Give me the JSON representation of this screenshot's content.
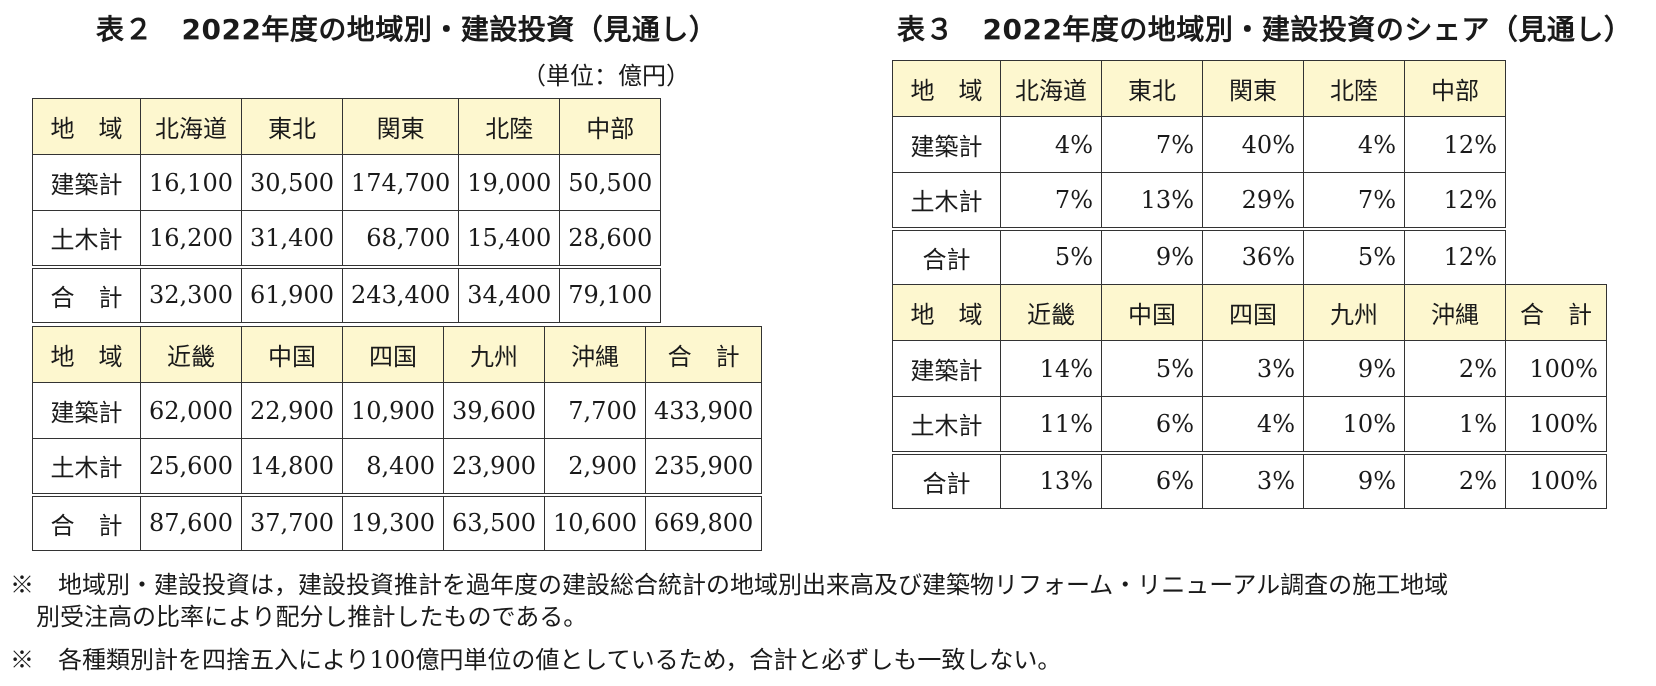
{
  "table2": {
    "title": "表２　2022年度の地域別・建設投資（見通し）",
    "unit": "（単位：億円）",
    "top": {
      "header": [
        "地　域",
        "北海道",
        "東北",
        "関東",
        "北陸",
        "中部"
      ],
      "rows": [
        [
          "建築計",
          "16,100",
          "30,500",
          "174,700",
          "19,000",
          "50,500"
        ],
        [
          "土木計",
          "16,200",
          "31,400",
          "68,700",
          "15,400",
          "28,600"
        ],
        [
          "合　計",
          "32,300",
          "61,900",
          "243,400",
          "34,400",
          "79,100"
        ]
      ]
    },
    "bottom": {
      "header": [
        "地　域",
        "近畿",
        "中国",
        "四国",
        "九州",
        "沖縄",
        "合　計"
      ],
      "rows": [
        [
          "建築計",
          "62,000",
          "22,900",
          "10,900",
          "39,600",
          "7,700",
          "433,900"
        ],
        [
          "土木計",
          "25,600",
          "14,800",
          "8,400",
          "23,900",
          "2,900",
          "235,900"
        ],
        [
          "合　計",
          "87,600",
          "37,700",
          "19,300",
          "63,500",
          "10,600",
          "669,800"
        ]
      ]
    }
  },
  "table3": {
    "title": "表３　2022年度の地域別・建設投資のシェア（見通し）",
    "top": {
      "header": [
        "地　域",
        "北海道",
        "東北",
        "関東",
        "北陸",
        "中部"
      ],
      "rows": [
        [
          "建築計",
          "4%",
          "7%",
          "40%",
          "4%",
          "12%"
        ],
        [
          "土木計",
          "7%",
          "13%",
          "29%",
          "7%",
          "12%"
        ],
        [
          "合計",
          "5%",
          "9%",
          "36%",
          "5%",
          "12%"
        ]
      ]
    },
    "bottom": {
      "header": [
        "地　域",
        "近畿",
        "中国",
        "四国",
        "九州",
        "沖縄",
        "合　計"
      ],
      "rows": [
        [
          "建築計",
          "14%",
          "5%",
          "3%",
          "9%",
          "2%",
          "100%"
        ],
        [
          "土木計",
          "11%",
          "6%",
          "4%",
          "10%",
          "1%",
          "100%"
        ],
        [
          "合計",
          "13%",
          "6%",
          "3%",
          "9%",
          "2%",
          "100%"
        ]
      ]
    }
  },
  "notes": [
    "※　地域別・建設投資は，建設投資推計を過年度の建設総合統計の地域別出来高及び建築物リフォーム・リニューアル調査の施工地域",
    "別受注高の比率により配分し推計したものである。",
    "※　各種類別計を四捨五入により100億円単位の値としているため，合計と必ずしも一致しない。"
  ]
}
